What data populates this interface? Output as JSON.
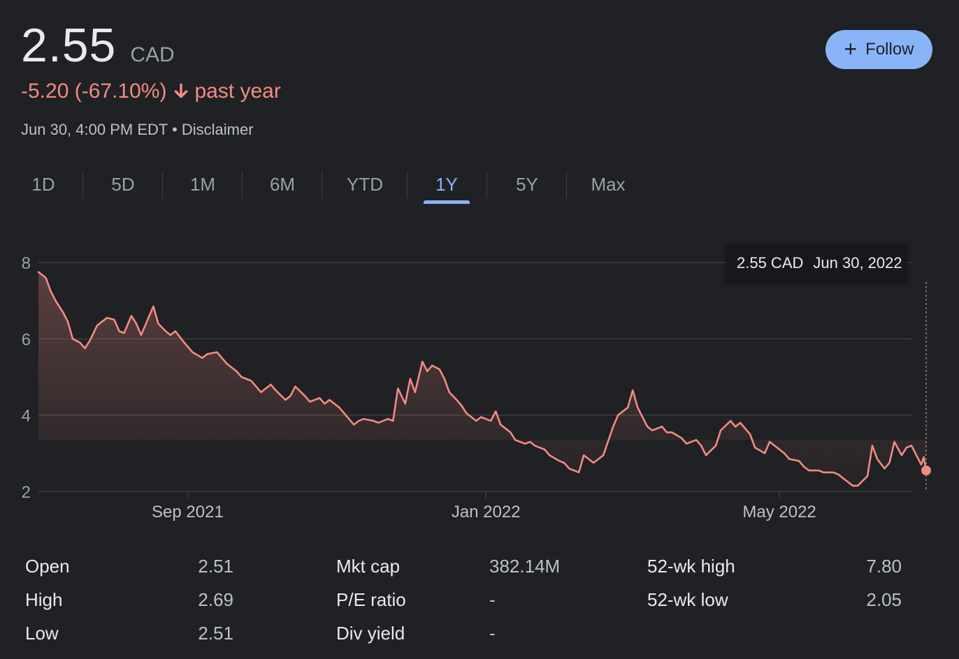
{
  "quote": {
    "price": "2.55",
    "currency": "CAD",
    "change": "-5.20 (-67.10%)",
    "period": "past year",
    "timestamp": "Jun 30, 4:00 PM EDT",
    "separator": "•",
    "disclaimer": "Disclaimer"
  },
  "follow_button": {
    "label": "Follow",
    "icon": "plus-icon"
  },
  "tabs": [
    {
      "label": "1D"
    },
    {
      "label": "5D"
    },
    {
      "label": "1M"
    },
    {
      "label": "6M"
    },
    {
      "label": "YTD"
    },
    {
      "label": "1Y",
      "active": true
    },
    {
      "label": "5Y"
    },
    {
      "label": "Max"
    }
  ],
  "tooltip": {
    "price": "2.55 CAD",
    "date": "Jun 30, 2022"
  },
  "colors": {
    "background": "#202124",
    "line": "#f28b82",
    "accent": "#8ab4f8",
    "grid": "#3c4043"
  },
  "chart_data": {
    "type": "area",
    "title": "",
    "xlabel": "",
    "ylabel": "",
    "ylim": [
      2,
      8
    ],
    "y_ticks": [
      "8",
      "6",
      "4",
      "2"
    ],
    "x_ticks": [
      "Sep 2021",
      "Jan 2022",
      "May 2022"
    ],
    "x_range": [
      "2021-07-02",
      "2022-06-30"
    ],
    "grid": true,
    "series": [
      {
        "points": [
          [
            "2021-07-02",
            7.75
          ],
          [
            "2021-07-05",
            7.6
          ],
          [
            "2021-07-07",
            7.25
          ],
          [
            "2021-07-09",
            7.0
          ],
          [
            "2021-07-12",
            6.7
          ],
          [
            "2021-07-14",
            6.45
          ],
          [
            "2021-07-16",
            6.0
          ],
          [
            "2021-07-19",
            5.9
          ],
          [
            "2021-07-21",
            5.75
          ],
          [
            "2021-07-23",
            5.95
          ],
          [
            "2021-07-26",
            6.35
          ],
          [
            "2021-07-28",
            6.45
          ],
          [
            "2021-07-30",
            6.55
          ],
          [
            "2021-08-02",
            6.5
          ],
          [
            "2021-08-04",
            6.2
          ],
          [
            "2021-08-06",
            6.15
          ],
          [
            "2021-08-09",
            6.6
          ],
          [
            "2021-08-11",
            6.4
          ],
          [
            "2021-08-13",
            6.1
          ],
          [
            "2021-08-16",
            6.55
          ],
          [
            "2021-08-18",
            6.85
          ],
          [
            "2021-08-20",
            6.4
          ],
          [
            "2021-08-23",
            6.2
          ],
          [
            "2021-08-25",
            6.1
          ],
          [
            "2021-08-27",
            6.2
          ],
          [
            "2021-08-30",
            5.95
          ],
          [
            "2021-09-01",
            5.8
          ],
          [
            "2021-09-03",
            5.65
          ],
          [
            "2021-09-07",
            5.5
          ],
          [
            "2021-09-09",
            5.6
          ],
          [
            "2021-09-13",
            5.65
          ],
          [
            "2021-09-15",
            5.5
          ],
          [
            "2021-09-17",
            5.35
          ],
          [
            "2021-09-21",
            5.15
          ],
          [
            "2021-09-23",
            5.0
          ],
          [
            "2021-09-27",
            4.9
          ],
          [
            "2021-09-29",
            4.75
          ],
          [
            "2021-10-01",
            4.6
          ],
          [
            "2021-10-05",
            4.8
          ],
          [
            "2021-10-07",
            4.65
          ],
          [
            "2021-10-11",
            4.4
          ],
          [
            "2021-10-13",
            4.5
          ],
          [
            "2021-10-15",
            4.75
          ],
          [
            "2021-10-19",
            4.5
          ],
          [
            "2021-10-21",
            4.35
          ],
          [
            "2021-10-25",
            4.45
          ],
          [
            "2021-10-27",
            4.3
          ],
          [
            "2021-10-29",
            4.4
          ],
          [
            "2021-11-02",
            4.2
          ],
          [
            "2021-11-04",
            4.05
          ],
          [
            "2021-11-08",
            3.75
          ],
          [
            "2021-11-10",
            3.85
          ],
          [
            "2021-11-12",
            3.9
          ],
          [
            "2021-11-16",
            3.85
          ],
          [
            "2021-11-18",
            3.8
          ],
          [
            "2021-11-22",
            3.9
          ],
          [
            "2021-11-24",
            3.85
          ],
          [
            "2021-11-26",
            4.7
          ],
          [
            "2021-11-29",
            4.3
          ],
          [
            "2021-12-01",
            4.95
          ],
          [
            "2021-12-03",
            4.6
          ],
          [
            "2021-12-06",
            5.4
          ],
          [
            "2021-12-08",
            5.15
          ],
          [
            "2021-12-10",
            5.3
          ],
          [
            "2021-12-13",
            5.2
          ],
          [
            "2021-12-15",
            4.95
          ],
          [
            "2021-12-17",
            4.6
          ],
          [
            "2021-12-20",
            4.4
          ],
          [
            "2021-12-22",
            4.25
          ],
          [
            "2021-12-24",
            4.05
          ],
          [
            "2021-12-28",
            3.85
          ],
          [
            "2021-12-30",
            3.95
          ],
          [
            "2022-01-03",
            3.85
          ],
          [
            "2022-01-05",
            4.1
          ],
          [
            "2022-01-07",
            3.75
          ],
          [
            "2022-01-11",
            3.55
          ],
          [
            "2022-01-13",
            3.35
          ],
          [
            "2022-01-17",
            3.25
          ],
          [
            "2022-01-19",
            3.3
          ],
          [
            "2022-01-21",
            3.2
          ],
          [
            "2022-01-25",
            3.1
          ],
          [
            "2022-01-27",
            2.95
          ],
          [
            "2022-01-31",
            2.8
          ],
          [
            "2022-02-02",
            2.75
          ],
          [
            "2022-02-04",
            2.6
          ],
          [
            "2022-02-08",
            2.5
          ],
          [
            "2022-02-10",
            2.95
          ],
          [
            "2022-02-14",
            2.75
          ],
          [
            "2022-02-16",
            2.85
          ],
          [
            "2022-02-18",
            2.95
          ],
          [
            "2022-02-22",
            3.7
          ],
          [
            "2022-02-24",
            4.0
          ],
          [
            "2022-02-28",
            4.2
          ],
          [
            "2022-03-02",
            4.65
          ],
          [
            "2022-03-04",
            4.2
          ],
          [
            "2022-03-08",
            3.7
          ],
          [
            "2022-03-10",
            3.6
          ],
          [
            "2022-03-14",
            3.7
          ],
          [
            "2022-03-16",
            3.55
          ],
          [
            "2022-03-18",
            3.55
          ],
          [
            "2022-03-22",
            3.4
          ],
          [
            "2022-03-24",
            3.25
          ],
          [
            "2022-03-28",
            3.35
          ],
          [
            "2022-03-30",
            3.2
          ],
          [
            "2022-04-01",
            2.95
          ],
          [
            "2022-04-05",
            3.2
          ],
          [
            "2022-04-07",
            3.6
          ],
          [
            "2022-04-11",
            3.85
          ],
          [
            "2022-04-13",
            3.7
          ],
          [
            "2022-04-15",
            3.8
          ],
          [
            "2022-04-19",
            3.5
          ],
          [
            "2022-04-21",
            3.15
          ],
          [
            "2022-04-25",
            3.0
          ],
          [
            "2022-04-27",
            3.3
          ],
          [
            "2022-04-29",
            3.2
          ],
          [
            "2022-05-03",
            3.0
          ],
          [
            "2022-05-05",
            2.85
          ],
          [
            "2022-05-09",
            2.8
          ],
          [
            "2022-05-11",
            2.65
          ],
          [
            "2022-05-13",
            2.55
          ],
          [
            "2022-05-17",
            2.55
          ],
          [
            "2022-05-19",
            2.5
          ],
          [
            "2022-05-23",
            2.5
          ],
          [
            "2022-05-25",
            2.45
          ],
          [
            "2022-05-27",
            2.35
          ],
          [
            "2022-05-31",
            2.15
          ],
          [
            "2022-06-02",
            2.15
          ],
          [
            "2022-06-06",
            2.4
          ],
          [
            "2022-06-08",
            3.2
          ],
          [
            "2022-06-10",
            2.85
          ],
          [
            "2022-06-13",
            2.6
          ],
          [
            "2022-06-15",
            2.75
          ],
          [
            "2022-06-17",
            3.3
          ],
          [
            "2022-06-20",
            2.95
          ],
          [
            "2022-06-22",
            3.15
          ],
          [
            "2022-06-24",
            3.2
          ],
          [
            "2022-06-26",
            2.95
          ],
          [
            "2022-06-28",
            2.7
          ],
          [
            "2022-06-29",
            2.9
          ],
          [
            "2022-06-30",
            2.55
          ]
        ]
      }
    ]
  },
  "stats": [
    {
      "label": "Open",
      "value": "2.51"
    },
    {
      "label": "High",
      "value": "2.69"
    },
    {
      "label": "Low",
      "value": "2.51"
    },
    {
      "label": "Mkt cap",
      "value": "382.14M"
    },
    {
      "label": "P/E ratio",
      "value": "-"
    },
    {
      "label": "Div yield",
      "value": "-"
    },
    {
      "label": "52-wk high",
      "value": "7.80"
    },
    {
      "label": "52-wk low",
      "value": "2.05"
    }
  ]
}
